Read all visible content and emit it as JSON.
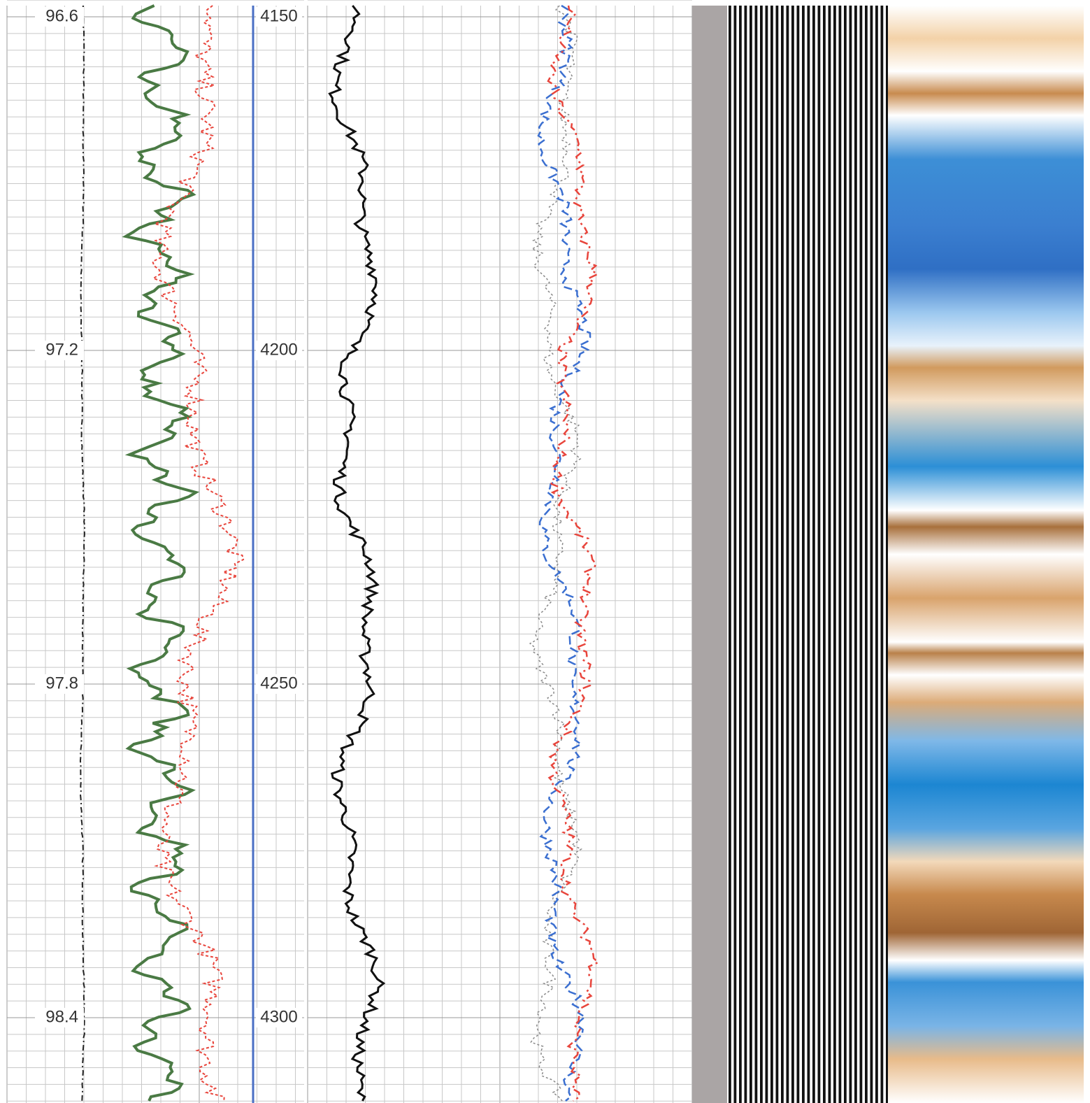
{
  "left_scale": {
    "labels": [
      96.6,
      97.2,
      97.8,
      98.4
    ]
  },
  "depth_scale": {
    "labels": [
      4150,
      4200,
      4250,
      4300
    ]
  }
}
